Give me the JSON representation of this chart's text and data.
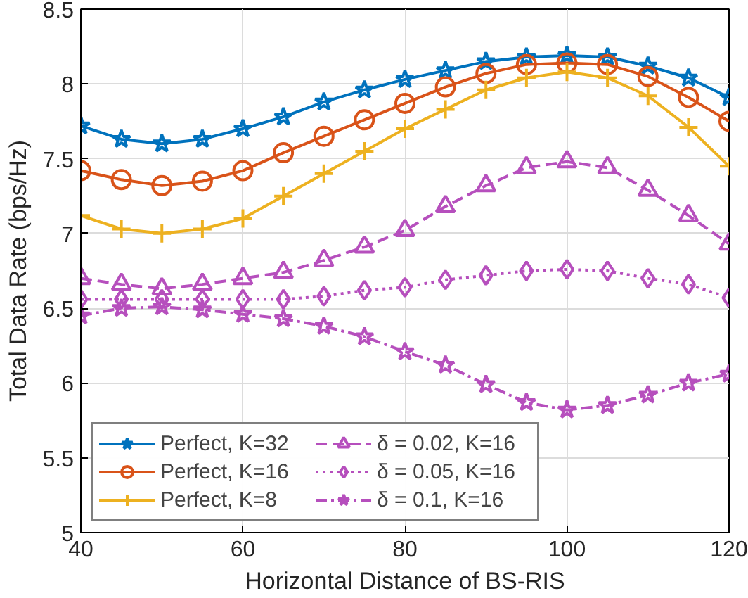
{
  "chart_data": {
    "type": "line",
    "xlabel": "Horizontal Distance of BS-RIS",
    "ylabel": "Total Data Rate (bps/Hz)",
    "x": [
      40,
      45,
      50,
      55,
      60,
      65,
      70,
      75,
      80,
      85,
      90,
      95,
      100,
      105,
      110,
      115,
      120
    ],
    "xlim": [
      40,
      120
    ],
    "xticks": [
      40,
      60,
      80,
      100,
      120
    ],
    "ylim": [
      5,
      8.5
    ],
    "yticks": [
      5,
      5.5,
      6,
      6.5,
      7,
      7.5,
      8,
      8.5
    ],
    "grid": true,
    "legend": "bottom left",
    "series": [
      {
        "name": "Perfect, K=32",
        "color": "#0072bd",
        "marker": "star",
        "line_style": "solid",
        "values": [
          7.72,
          7.63,
          7.6,
          7.63,
          7.7,
          7.78,
          7.88,
          7.96,
          8.03,
          8.09,
          8.15,
          8.18,
          8.19,
          8.18,
          8.12,
          8.04,
          7.91
        ]
      },
      {
        "name": "Perfect, K=16",
        "color": "#d95319",
        "marker": "circle",
        "line_style": "solid",
        "values": [
          7.42,
          7.36,
          7.32,
          7.35,
          7.42,
          7.54,
          7.65,
          7.76,
          7.87,
          7.98,
          8.07,
          8.13,
          8.14,
          8.13,
          8.05,
          7.91,
          7.75
        ]
      },
      {
        "name": "Perfect, K=8",
        "color": "#edb120",
        "marker": "cross",
        "line_style": "solid",
        "values": [
          7.12,
          7.03,
          7.0,
          7.03,
          7.1,
          7.25,
          7.4,
          7.55,
          7.7,
          7.83,
          7.96,
          8.04,
          8.08,
          8.04,
          7.92,
          7.71,
          7.45
        ]
      },
      {
        "name": "δ = 0.02, K=16",
        "color": "#b64fbd",
        "marker": "triangle",
        "line_style": "dashed",
        "values": [
          6.7,
          6.66,
          6.63,
          6.66,
          6.7,
          6.74,
          6.82,
          6.91,
          7.02,
          7.18,
          7.32,
          7.44,
          7.48,
          7.44,
          7.29,
          7.12,
          6.93
        ]
      },
      {
        "name": "δ = 0.05, K=16",
        "color": "#b64fbd",
        "marker": "diamond",
        "line_style": "dotted",
        "values": [
          6.56,
          6.56,
          6.56,
          6.56,
          6.56,
          6.56,
          6.58,
          6.62,
          6.64,
          6.69,
          6.72,
          6.75,
          6.76,
          6.75,
          6.7,
          6.66,
          6.57
        ]
      },
      {
        "name": "δ = 0.1, K=16",
        "color": "#b64fbd",
        "marker": "star",
        "line_style": "dashdot",
        "values": [
          6.45,
          6.5,
          6.51,
          6.49,
          6.46,
          6.43,
          6.38,
          6.31,
          6.21,
          6.12,
          5.99,
          5.87,
          5.82,
          5.85,
          5.92,
          6.0,
          6.06
        ]
      }
    ]
  }
}
